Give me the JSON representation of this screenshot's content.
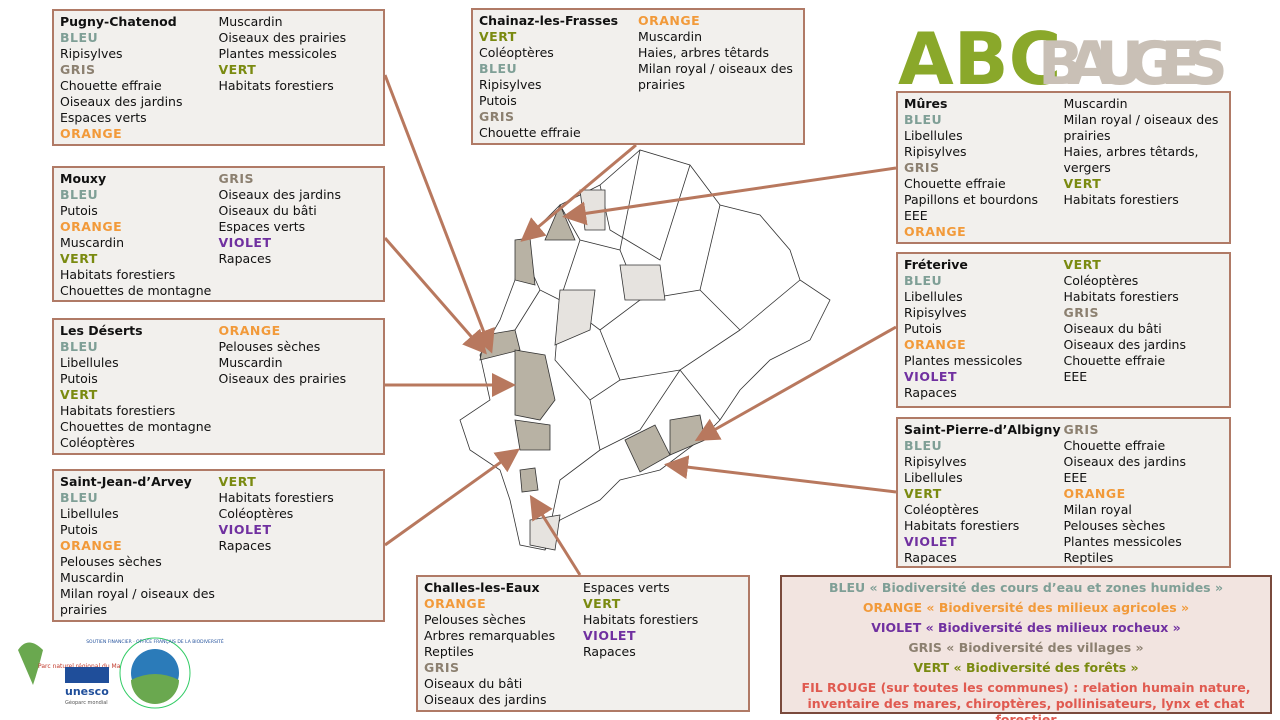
{
  "logo": {
    "part1": "ABC",
    "part2": "BAUGES"
  },
  "boxes": [
    {
      "title": "Pugny-Chatenod",
      "columns": [
        [
          {
            "text": "BLEU",
            "color": "#7f9f96"
          },
          "Ripisylves",
          {
            "text": "GRIS",
            "color": "#8c8070"
          },
          "Chouette effraie",
          "Oiseaux des jardins",
          "Espaces verts",
          {
            "text": "ORANGE",
            "color": "#f29a3a"
          }
        ],
        [
          "Muscardin",
          "Oiseaux des prairies",
          "Plantes messicoles",
          {
            "text": "VERT",
            "color": "#7a8a10"
          },
          "Habitats forestiers"
        ]
      ]
    },
    {
      "title": "Mouxy",
      "columns": [
        [
          {
            "text": "BLEU",
            "color": "#7f9f96"
          },
          "Putois",
          {
            "text": "ORANGE",
            "color": "#f29a3a"
          },
          "Muscardin",
          {
            "text": "VERT",
            "color": "#7a8a10"
          },
          "Habitats forestiers",
          "Chouettes de montagne"
        ],
        [
          {
            "text": "GRIS",
            "color": "#8c8070"
          },
          "Oiseaux des jardins",
          "Oiseaux du bâti",
          "Espaces verts",
          {
            "text": "VIOLET",
            "color": "#7030a0"
          },
          "Rapaces"
        ]
      ]
    },
    {
      "title": "Les Déserts",
      "columns": [
        [
          {
            "text": "BLEU",
            "color": "#7f9f96"
          },
          "Libellules",
          "Putois",
          {
            "text": "VERT",
            "color": "#7a8a10"
          },
          "Habitats forestiers",
          "Chouettes de montagne",
          "Coléoptères"
        ],
        [
          {
            "text": "ORANGE",
            "color": "#f29a3a"
          },
          "Pelouses sèches",
          "Muscardin",
          "Oiseaux des prairies"
        ]
      ]
    },
    {
      "title": "Saint-Jean-d’Arvey",
      "columns": [
        [
          {
            "text": "BLEU",
            "color": "#7f9f96"
          },
          "Libellules",
          "Putois",
          {
            "text": "ORANGE",
            "color": "#f29a3a"
          },
          "Pelouses sèches",
          "Muscardin",
          "Milan royal / oiseaux des prairies"
        ],
        [
          {
            "text": "VERT",
            "color": "#7a8a10"
          },
          "Habitats forestiers",
          "Coléoptères",
          {
            "text": "VIOLET",
            "color": "#7030a0"
          },
          "Rapaces"
        ]
      ]
    },
    {
      "title": "Chainaz-les-Frasses",
      "columns": [
        [
          {
            "text": "VERT",
            "color": "#7a8a10"
          },
          "Coléoptères",
          {
            "text": "BLEU",
            "color": "#7f9f96"
          },
          "Ripisylves",
          "Putois",
          {
            "text": "GRIS",
            "color": "#8c8070"
          },
          "Chouette effraie"
        ],
        [
          {
            "text": "ORANGE",
            "color": "#f29a3a"
          },
          "Muscardin",
          "Haies, arbres têtards",
          "Milan royal / oiseaux des prairies"
        ]
      ]
    },
    {
      "title": "Mûres",
      "columns": [
        [
          {
            "text": "BLEU",
            "color": "#7f9f96"
          },
          "Libellules",
          "Ripisylves",
          {
            "text": "GRIS",
            "color": "#8c8070"
          },
          "Chouette effraie",
          "Papillons et bourdons",
          "EEE",
          {
            "text": "ORANGE",
            "color": "#f29a3a"
          }
        ],
        [
          "Muscardin",
          "Milan royal / oiseaux des prairies",
          "Haies, arbres têtards, vergers",
          {
            "text": "VERT",
            "color": "#7a8a10"
          },
          "Habitats forestiers"
        ]
      ]
    },
    {
      "title": "Fréterive",
      "columns": [
        [
          {
            "text": "BLEU",
            "color": "#7f9f96"
          },
          "Libellules",
          "Ripisylves",
          "Putois",
          {
            "text": "ORANGE",
            "color": "#f29a3a"
          },
          "Plantes messicoles",
          {
            "text": "VIOLET",
            "color": "#7030a0"
          },
          "Rapaces"
        ],
        [
          {
            "text": "VERT",
            "color": "#7a8a10"
          },
          "Coléoptères",
          "Habitats forestiers",
          {
            "text": "GRIS",
            "color": "#8c8070"
          },
          "Oiseaux du bâti",
          "Oiseaux des jardins",
          "Chouette effraie",
          "EEE"
        ]
      ]
    },
    {
      "title": "Saint-Pierre-d’Albigny",
      "columns": [
        [
          {
            "text": "BLEU",
            "color": "#7f9f96"
          },
          "Ripisylves",
          "Libellules",
          {
            "text": "VERT",
            "color": "#7a8a10"
          },
          "Coléoptères",
          "Habitats forestiers",
          {
            "text": "VIOLET",
            "color": "#7030a0"
          },
          "Rapaces"
        ],
        [
          {
            "text": "GRIS",
            "color": "#8c8070"
          },
          "Chouette effraie",
          "Oiseaux des jardins",
          "EEE",
          {
            "text": "ORANGE",
            "color": "#f29a3a"
          },
          "Milan royal",
          "Pelouses sèches",
          "Plantes messicoles",
          "Reptiles"
        ]
      ]
    },
    {
      "title": "Challes-les-Eaux",
      "columns": [
        [
          {
            "text": "ORANGE",
            "color": "#f29a3a"
          },
          "Pelouses sèches",
          "Arbres remarquables",
          "Reptiles",
          {
            "text": "GRIS",
            "color": "#8c8070"
          },
          "Oiseaux du bâti",
          "Oiseaux des jardins"
        ],
        [
          "Espaces verts",
          {
            "text": "VERT",
            "color": "#7a8a10"
          },
          "Habitats forestiers",
          {
            "text": "VIOLET",
            "color": "#7030a0"
          },
          "Rapaces"
        ]
      ]
    }
  ],
  "legend": [
    {
      "text": "BLEU  « Biodiversité des cours d’eau et zones humides »",
      "color": "#7f9f96"
    },
    {
      "text": "ORANGE  « Biodiversité des milieux agricoles »",
      "color": "#f29a3a"
    },
    {
      "text": "VIOLET « Biodiversité des milieux rocheux »",
      "color": "#7030a0"
    },
    {
      "text": "GRIS  « Biodiversité des villages »",
      "color": "#8c8070"
    },
    {
      "text": "VERT  « Biodiversité des forêts »",
      "color": "#7a8a10"
    },
    {
      "text": "FIL ROUGE (sur toutes les communes) : relation humain nature, inventaire des mares, chiroptères, pollinisateurs, lynx et chat forestier",
      "color": "#e05a50"
    }
  ],
  "partners": {
    "parc": "Parc naturel régional du Massif des Bauges",
    "unesco": "unesco",
    "geoparc": "Géoparc mondial",
    "ofb": "SOUTIEN FINANCIER · OFFICE FRANÇAIS DE LA BIODIVERSITÉ"
  }
}
